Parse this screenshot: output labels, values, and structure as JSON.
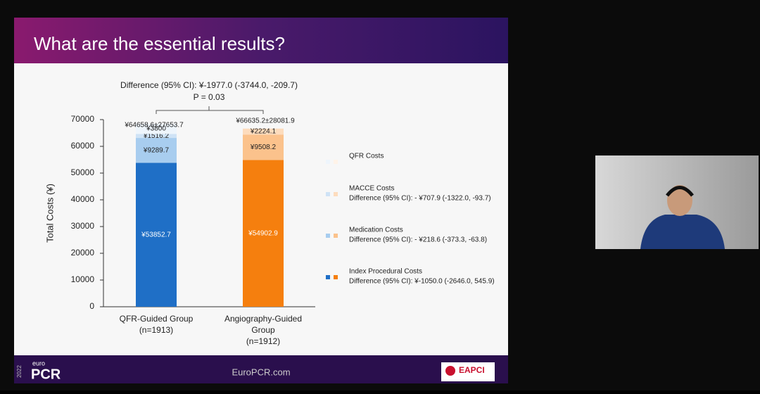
{
  "slide": {
    "title": "What are the essential results?",
    "footer_site": "EuroPCR.com",
    "logo_small": "euro",
    "logo_big": "PCR",
    "logo_year": "2022",
    "partner_logo": "EAPCI"
  },
  "chart_data": {
    "type": "stacked-bar",
    "difference": "Difference (95% CI): ¥-1977.0 (-3744.0, -209.7)",
    "p_value": "P = 0.03",
    "y_label": "Total Costs (¥)",
    "categories": [
      [
        "QFR-Guided Group",
        "(n=1913)"
      ],
      [
        "Angiography-Guided",
        "Group",
        "(n=1912)"
      ]
    ],
    "totals": [
      "¥64658.6±27653.7",
      "¥66635.2±28081.9"
    ],
    "ylim": [
      0,
      70000
    ],
    "yticks": [
      0,
      10000,
      20000,
      30000,
      40000,
      50000,
      60000,
      70000
    ],
    "series": [
      {
        "name": "Index Procedural Costs",
        "difference": "Difference (95% CI): ¥-1050.0 (-2646.0, 545.9)",
        "colors": [
          "#1f6fc6",
          "#f57f0e"
        ],
        "values": [
          53852.7,
          54902.9
        ],
        "value_labels": [
          "¥53852.7",
          "¥54902.9"
        ]
      },
      {
        "name": "Medication Costs",
        "difference": "Difference (95% CI): - ¥218.6 (-373.3, -63.8)",
        "colors": [
          "#a8cdef",
          "#fbc28c"
        ],
        "values": [
          9289.7,
          9508.2
        ],
        "value_labels": [
          "¥9289.7",
          "¥9508.2"
        ]
      },
      {
        "name": "MACCE Costs",
        "difference": "Difference (95% CI): - ¥707.9 (-1322.0, -93.7)",
        "colors": [
          "#cfe3f6",
          "#fddcbd"
        ],
        "values": [
          1516.2,
          2224.1
        ],
        "value_labels": [
          "¥1516.2",
          "¥2224.1"
        ]
      },
      {
        "name": "QFR Costs",
        "colors": [
          "#eef5fc",
          "#fff3e8"
        ],
        "values": [
          3800,
          null
        ],
        "value_labels": [
          "¥3800",
          null
        ]
      }
    ]
  }
}
